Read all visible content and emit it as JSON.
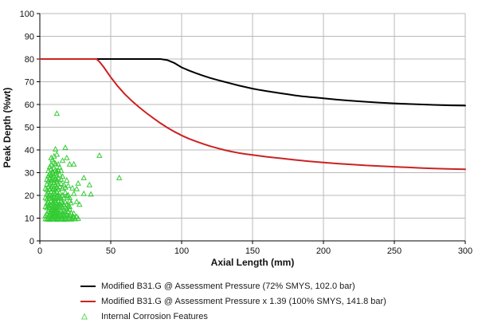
{
  "figure": {
    "background": "#ffffff",
    "grid_color": "#b8b8b8",
    "axis_color": "#000000",
    "tick_label_color": "#111111"
  },
  "chart_data": {
    "type": "scatter",
    "title": "",
    "xlabel": "Axial Length (mm)",
    "ylabel": "Peak Depth (%wt)",
    "xlim": [
      0,
      300
    ],
    "ylim": [
      0,
      100
    ],
    "x_ticks": [
      0,
      50,
      100,
      150,
      200,
      250,
      300
    ],
    "y_ticks": [
      0,
      10,
      20,
      30,
      40,
      50,
      60,
      70,
      80,
      90,
      100
    ],
    "grid": true,
    "legend_position": "bottom-left",
    "series": [
      {
        "name": "Modified B31.G @ Assessment Pressure (72% SMYS, 102.0 bar)",
        "type": "line",
        "color": "#000000",
        "width": 2,
        "points": [
          [
            0,
            80
          ],
          [
            85,
            80
          ],
          [
            90,
            79.5
          ],
          [
            95,
            78.2
          ],
          [
            100,
            76.3
          ],
          [
            105,
            75
          ],
          [
            110,
            73.8
          ],
          [
            115,
            72.7
          ],
          [
            120,
            71.7
          ],
          [
            125,
            70.8
          ],
          [
            130,
            70
          ],
          [
            135,
            69.2
          ],
          [
            140,
            68.4
          ],
          [
            145,
            67.7
          ],
          [
            150,
            67
          ],
          [
            155,
            66.4
          ],
          [
            160,
            65.9
          ],
          [
            165,
            65.4
          ],
          [
            170,
            64.9
          ],
          [
            175,
            64.5
          ],
          [
            180,
            64
          ],
          [
            185,
            63.6
          ],
          [
            190,
            63.3
          ],
          [
            195,
            63
          ],
          [
            200,
            62.7
          ],
          [
            210,
            62.1
          ],
          [
            220,
            61.6
          ],
          [
            230,
            61.2
          ],
          [
            240,
            60.8
          ],
          [
            250,
            60.5
          ],
          [
            260,
            60.2
          ],
          [
            270,
            60
          ],
          [
            280,
            59.8
          ],
          [
            290,
            59.6
          ],
          [
            300,
            59.5
          ]
        ]
      },
      {
        "name": "Modified B31.G @ Assessment Pressure x 1.39 (100% SMYS, 141.8 bar)",
        "type": "line",
        "color": "#cc2222",
        "width": 2,
        "points": [
          [
            0,
            80
          ],
          [
            40,
            80
          ],
          [
            42,
            78.8
          ],
          [
            45,
            76.5
          ],
          [
            50,
            72
          ],
          [
            55,
            68
          ],
          [
            60,
            64.5
          ],
          [
            65,
            61.5
          ],
          [
            70,
            58.8
          ],
          [
            75,
            56.3
          ],
          [
            80,
            54
          ],
          [
            85,
            51.8
          ],
          [
            90,
            49.8
          ],
          [
            95,
            48
          ],
          [
            100,
            46.4
          ],
          [
            105,
            45
          ],
          [
            110,
            43.8
          ],
          [
            115,
            42.7
          ],
          [
            120,
            41.7
          ],
          [
            125,
            40.8
          ],
          [
            130,
            40
          ],
          [
            135,
            39.3
          ],
          [
            140,
            38.7
          ],
          [
            145,
            38.2
          ],
          [
            150,
            37.8
          ],
          [
            160,
            37
          ],
          [
            170,
            36.3
          ],
          [
            180,
            35.6
          ],
          [
            190,
            35
          ],
          [
            200,
            34.5
          ],
          [
            210,
            34
          ],
          [
            220,
            33.6
          ],
          [
            230,
            33.2
          ],
          [
            240,
            32.9
          ],
          [
            250,
            32.6
          ],
          [
            260,
            32.3
          ],
          [
            270,
            32
          ],
          [
            280,
            31.8
          ],
          [
            290,
            31.6
          ],
          [
            300,
            31.5
          ]
        ]
      },
      {
        "name": "Internal Corrosion Features",
        "type": "scatter",
        "marker": "triangle-open",
        "color": "#33cc33",
        "points": [
          [
            4,
            9.7
          ],
          [
            5,
            9.5
          ],
          [
            6,
            9.8
          ],
          [
            7,
            9.4
          ],
          [
            8,
            9.6
          ],
          [
            9,
            9.9
          ],
          [
            10,
            9.5
          ],
          [
            11,
            9.7
          ],
          [
            12,
            9.4
          ],
          [
            13,
            9.8
          ],
          [
            14,
            9.5
          ],
          [
            15,
            9.9
          ],
          [
            16,
            9.6
          ],
          [
            17,
            9.4
          ],
          [
            18,
            9.8
          ],
          [
            19,
            9.5
          ],
          [
            20,
            9.7
          ],
          [
            21,
            9.9
          ],
          [
            22,
            9.5
          ],
          [
            23,
            9.7
          ],
          [
            25,
            9.6
          ],
          [
            27,
            9.8
          ],
          [
            24,
            10.4
          ],
          [
            26,
            10.6
          ],
          [
            4,
            11
          ],
          [
            5,
            12
          ],
          [
            6,
            10.8
          ],
          [
            6,
            13
          ],
          [
            7,
            11.5
          ],
          [
            7,
            12.8
          ],
          [
            8,
            10.5
          ],
          [
            8,
            12.2
          ],
          [
            8,
            13.6
          ],
          [
            9,
            11
          ],
          [
            9,
            12.6
          ],
          [
            9,
            14
          ],
          [
            10,
            10.7
          ],
          [
            10,
            12
          ],
          [
            10,
            13.4
          ],
          [
            11,
            11.2
          ],
          [
            11,
            12.7
          ],
          [
            11,
            14
          ],
          [
            12,
            10.6
          ],
          [
            12,
            12.1
          ],
          [
            12,
            13.5
          ],
          [
            13,
            11
          ],
          [
            13,
            12.5
          ],
          [
            13,
            13.9
          ],
          [
            14,
            10.8
          ],
          [
            14,
            12.3
          ],
          [
            15,
            11.4
          ],
          [
            15,
            13
          ],
          [
            16,
            10.6
          ],
          [
            16,
            12.4
          ],
          [
            17,
            11.8
          ],
          [
            17,
            13.3
          ],
          [
            18,
            10.9
          ],
          [
            18,
            12.6
          ],
          [
            19,
            11.6
          ],
          [
            20,
            10.8
          ],
          [
            20,
            12.9
          ],
          [
            21,
            11.3
          ],
          [
            22,
            12.2
          ],
          [
            23,
            10.9
          ],
          [
            24,
            12
          ],
          [
            21,
            13.8
          ],
          [
            19,
            14.1
          ],
          [
            4,
            15
          ],
          [
            5,
            14.5
          ],
          [
            5,
            16.5
          ],
          [
            6,
            15.4
          ],
          [
            6,
            17
          ],
          [
            7,
            14.8
          ],
          [
            7,
            16.2
          ],
          [
            8,
            15.6
          ],
          [
            8,
            17.4
          ],
          [
            9,
            15
          ],
          [
            9,
            16.8
          ],
          [
            10,
            14.6
          ],
          [
            10,
            16.2
          ],
          [
            10,
            17.8
          ],
          [
            11,
            15.3
          ],
          [
            11,
            17
          ],
          [
            12,
            14.9
          ],
          [
            12,
            16.5
          ],
          [
            13,
            15.8
          ],
          [
            13,
            17.5
          ],
          [
            14,
            14.7
          ],
          [
            14,
            16.3
          ],
          [
            15,
            15.5
          ],
          [
            15,
            17.2
          ],
          [
            16,
            14.9
          ],
          [
            16,
            16.8
          ],
          [
            17,
            15.9
          ],
          [
            18,
            14.6
          ],
          [
            18,
            17
          ],
          [
            19,
            16
          ],
          [
            20,
            15.2
          ],
          [
            21,
            17.6
          ],
          [
            26,
            17.2
          ],
          [
            28,
            16
          ],
          [
            21,
            15
          ],
          [
            22,
            16.7
          ],
          [
            4,
            19
          ],
          [
            5,
            18.4
          ],
          [
            5,
            20.6
          ],
          [
            6,
            19.6
          ],
          [
            6,
            21.4
          ],
          [
            7,
            18.8
          ],
          [
            7,
            20.2
          ],
          [
            8,
            19.4
          ],
          [
            8,
            21.6
          ],
          [
            9,
            18.6
          ],
          [
            9,
            20.4
          ],
          [
            10,
            19.2
          ],
          [
            10,
            21
          ],
          [
            11,
            18.5
          ],
          [
            11,
            20.8
          ],
          [
            12,
            19.6
          ],
          [
            12,
            21.5
          ],
          [
            13,
            18.8
          ],
          [
            13,
            20.3
          ],
          [
            14,
            19.5
          ],
          [
            14,
            21.2
          ],
          [
            15,
            18.7
          ],
          [
            16,
            20
          ],
          [
            17,
            19
          ],
          [
            18,
            21.3
          ],
          [
            19,
            19.8
          ],
          [
            24,
            20.7
          ],
          [
            31,
            20.7
          ],
          [
            36,
            20.5
          ],
          [
            21,
            18.9
          ],
          [
            20,
            20.1
          ],
          [
            4,
            23
          ],
          [
            5,
            22.5
          ],
          [
            5,
            24.8
          ],
          [
            6,
            23.6
          ],
          [
            7,
            22.8
          ],
          [
            7,
            25
          ],
          [
            8,
            23.8
          ],
          [
            8,
            25.6
          ],
          [
            9,
            22.6
          ],
          [
            9,
            24.4
          ],
          [
            10,
            23.2
          ],
          [
            10,
            25.4
          ],
          [
            11,
            22.8
          ],
          [
            11,
            24.6
          ],
          [
            12,
            23.5
          ],
          [
            12,
            25.8
          ],
          [
            13,
            22.7
          ],
          [
            13,
            24.9
          ],
          [
            14,
            23.8
          ],
          [
            15,
            25.2
          ],
          [
            16,
            23.1
          ],
          [
            17,
            24.5
          ],
          [
            23,
            23.2
          ],
          [
            26,
            22.8
          ],
          [
            35,
            24.6
          ],
          [
            27,
            25.3
          ],
          [
            18,
            23.5
          ],
          [
            20,
            24.2
          ],
          [
            5,
            27
          ],
          [
            6,
            26.4
          ],
          [
            6,
            28.6
          ],
          [
            7,
            27.5
          ],
          [
            8,
            26.8
          ],
          [
            8,
            29
          ],
          [
            9,
            27.8
          ],
          [
            10,
            26.5
          ],
          [
            10,
            28.4
          ],
          [
            11,
            27.2
          ],
          [
            11,
            29.5
          ],
          [
            12,
            26.8
          ],
          [
            12,
            28.8
          ],
          [
            13,
            27.6
          ],
          [
            14,
            29.2
          ],
          [
            15,
            27
          ],
          [
            16,
            28.3
          ],
          [
            31,
            27.7
          ],
          [
            56,
            27.7
          ],
          [
            19,
            26.6
          ],
          [
            9,
            29.8
          ],
          [
            7,
            29.3
          ],
          [
            6,
            30.8
          ],
          [
            8,
            31.6
          ],
          [
            8,
            33.4
          ],
          [
            9,
            30.4
          ],
          [
            10,
            32
          ],
          [
            11,
            31.2
          ],
          [
            11,
            34
          ],
          [
            12,
            30.6
          ],
          [
            13,
            33.7
          ],
          [
            13,
            31
          ],
          [
            15,
            30.9
          ],
          [
            21,
            33.7
          ],
          [
            24,
            33.7
          ],
          [
            10,
            34.6
          ],
          [
            7,
            32.6
          ],
          [
            14,
            32.3
          ],
          [
            8,
            36.5
          ],
          [
            10,
            37.2
          ],
          [
            11,
            40.3
          ],
          [
            18,
            41
          ],
          [
            19,
            36.5
          ],
          [
            12,
            38
          ],
          [
            42,
            37.5
          ],
          [
            9,
            35.6
          ],
          [
            16,
            35.3
          ],
          [
            12,
            56
          ]
        ]
      }
    ]
  }
}
